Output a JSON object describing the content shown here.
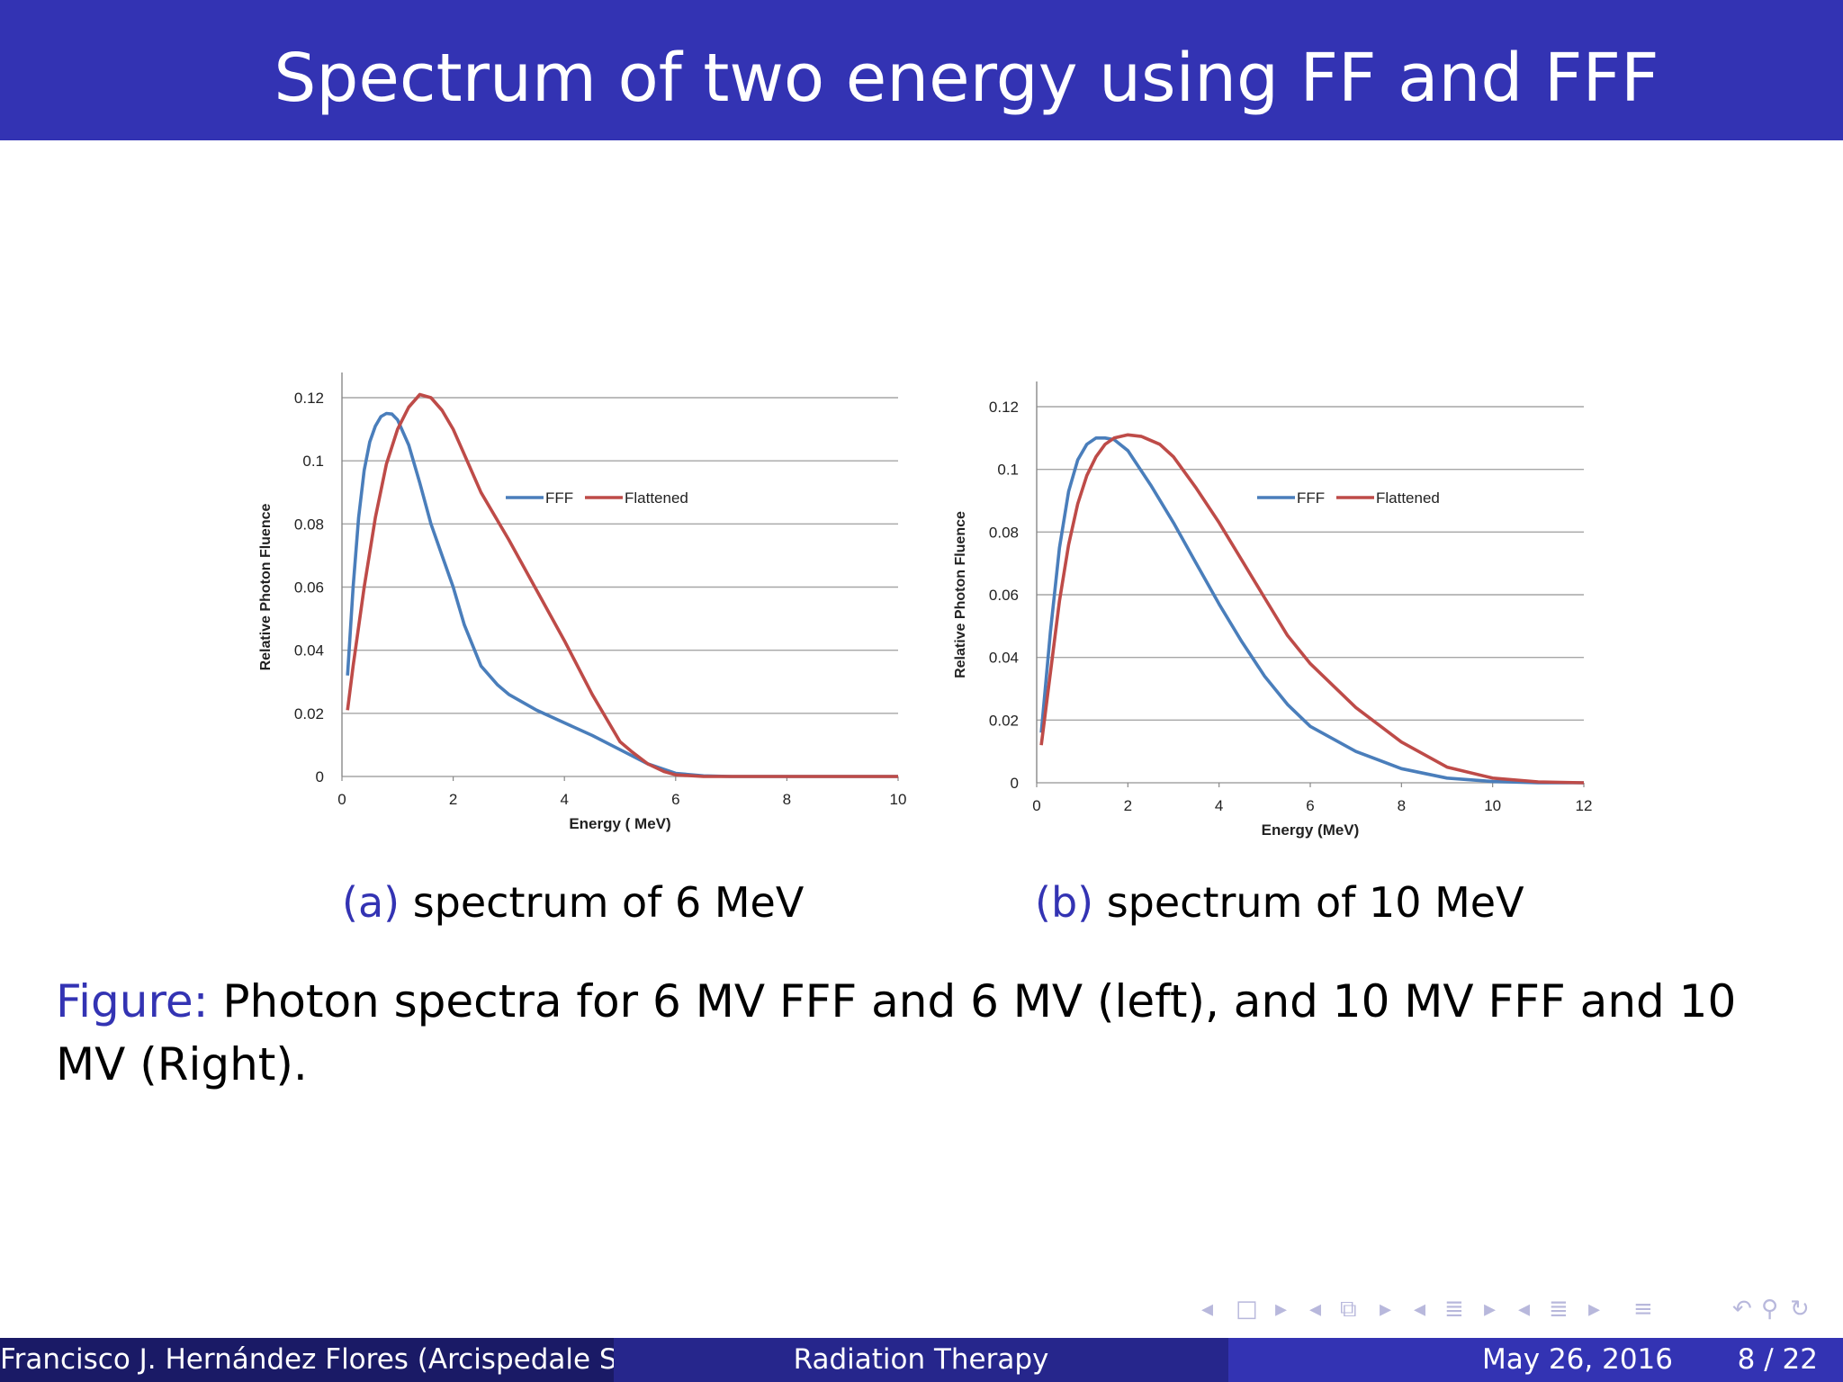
{
  "slide": {
    "title": "Spectrum of two energy using FF and FFF",
    "subfig_a": {
      "tag": "(a)",
      "text": " spectrum of 6 MeV"
    },
    "subfig_b": {
      "tag": "(b)",
      "text": " spectrum of 10 MeV"
    },
    "figure_caption": {
      "tag": "Figure:",
      "text": " Photon spectra for 6 MV FFF and 6 MV (left), and 10 MV FFF and 10 MV (Right)."
    }
  },
  "footer": {
    "author": "Francisco J. Hernández Flores  (Arcispedale Santa Maria Nuova)",
    "title": "Radiation Therapy",
    "date": "May 26, 2016",
    "page": "8 / 22"
  },
  "nav_icons": [
    "triangle-left-icon",
    "frame-icon",
    "triangle-right-icon",
    "triangle-left-icon",
    "frames-icon",
    "triangle-right-icon",
    "triangle-left-icon",
    "section-icon",
    "triangle-right-icon",
    "triangle-left-icon",
    "subsection-icon",
    "triangle-right-icon",
    "align-icon",
    "undo-icon",
    "search-icon",
    "redo-icon"
  ],
  "colors": {
    "fff": "#4a7ebb",
    "flattened": "#be4b48",
    "beamer": "#3333b3"
  },
  "chart_data": [
    {
      "type": "line",
      "xlabel": "Energy ( MeV)",
      "ylabel": "Relative Photon Fluence",
      "xlim": [
        0,
        10
      ],
      "ylim": [
        0,
        0.12
      ],
      "xticks": [
        0,
        2,
        4,
        6,
        8,
        10
      ],
      "yticks": [
        0,
        0.02,
        0.04,
        0.06,
        0.08,
        0.1,
        0.12
      ],
      "ytick_labels": [
        "0",
        "0.02",
        "0.04",
        "0.06",
        "0.08",
        "0.1",
        "0.12"
      ],
      "grid": true,
      "legend": "center-right",
      "series": [
        {
          "name": "FFF",
          "color": "#4a7ebb",
          "x": [
            0.1,
            0.2,
            0.3,
            0.4,
            0.5,
            0.6,
            0.7,
            0.8,
            0.9,
            1.0,
            1.2,
            1.4,
            1.6,
            1.8,
            2.0,
            2.2,
            2.5,
            2.8,
            3.0,
            3.5,
            4.0,
            4.5,
            5.0,
            5.5,
            6.0,
            6.5,
            7.0,
            8.0,
            9.0,
            10.0
          ],
          "y": [
            0.032,
            0.06,
            0.082,
            0.097,
            0.106,
            0.111,
            0.114,
            0.115,
            0.1148,
            0.113,
            0.105,
            0.093,
            0.08,
            0.07,
            0.06,
            0.048,
            0.035,
            0.029,
            0.026,
            0.021,
            0.017,
            0.013,
            0.0085,
            0.004,
            0.001,
            0.0002,
            0.0,
            0.0,
            0.0,
            0.0
          ]
        },
        {
          "name": "Flattened",
          "color": "#be4b48",
          "x": [
            0.1,
            0.2,
            0.4,
            0.6,
            0.8,
            1.0,
            1.2,
            1.4,
            1.6,
            1.8,
            2.0,
            2.2,
            2.5,
            3.0,
            3.5,
            4.0,
            4.5,
            5.0,
            5.2,
            5.5,
            5.8,
            6.0,
            6.5,
            7.0,
            8.0,
            9.0,
            10.0
          ],
          "y": [
            0.021,
            0.035,
            0.06,
            0.082,
            0.099,
            0.11,
            0.117,
            0.121,
            0.12,
            0.116,
            0.11,
            0.102,
            0.09,
            0.075,
            0.059,
            0.043,
            0.026,
            0.011,
            0.008,
            0.004,
            0.0015,
            0.0005,
            0.0,
            0.0,
            0.0,
            0.0,
            0.0
          ]
        }
      ]
    },
    {
      "type": "line",
      "xlabel": "Energy (MeV)",
      "ylabel": "Relative Photon Fluence",
      "xlim": [
        0,
        12
      ],
      "ylim": [
        0,
        0.12
      ],
      "xticks": [
        0,
        2,
        4,
        6,
        8,
        10,
        12
      ],
      "yticks": [
        0,
        0.02,
        0.04,
        0.06,
        0.08,
        0.1,
        0.12
      ],
      "ytick_labels": [
        "0",
        "0.02",
        "0.04",
        "0.06",
        "0.08",
        "0.1",
        "0.12"
      ],
      "grid": true,
      "legend": "center-right",
      "series": [
        {
          "name": "FFF",
          "color": "#4a7ebb",
          "x": [
            0.1,
            0.3,
            0.5,
            0.7,
            0.9,
            1.1,
            1.3,
            1.5,
            1.7,
            2.0,
            2.5,
            3.0,
            3.5,
            4.0,
            4.5,
            5.0,
            5.5,
            6.0,
            7.0,
            8.0,
            9.0,
            10.0,
            11.0,
            12.0
          ],
          "y": [
            0.016,
            0.048,
            0.075,
            0.093,
            0.103,
            0.108,
            0.11,
            0.11,
            0.1095,
            0.106,
            0.095,
            0.083,
            0.07,
            0.057,
            0.045,
            0.034,
            0.025,
            0.018,
            0.01,
            0.0045,
            0.0015,
            0.0004,
            0.0,
            0.0
          ]
        },
        {
          "name": "Flattened",
          "color": "#be4b48",
          "x": [
            0.1,
            0.3,
            0.5,
            0.7,
            0.9,
            1.1,
            1.3,
            1.5,
            1.7,
            2.0,
            2.3,
            2.7,
            3.0,
            3.5,
            4.0,
            4.5,
            5.0,
            5.5,
            6.0,
            7.0,
            8.0,
            9.0,
            10.0,
            11.0,
            12.0
          ],
          "y": [
            0.012,
            0.035,
            0.058,
            0.076,
            0.089,
            0.098,
            0.104,
            0.108,
            0.11,
            0.111,
            0.1105,
            0.108,
            0.104,
            0.094,
            0.083,
            0.071,
            0.059,
            0.047,
            0.038,
            0.024,
            0.013,
            0.005,
            0.0015,
            0.0003,
            0.0
          ]
        }
      ]
    }
  ]
}
